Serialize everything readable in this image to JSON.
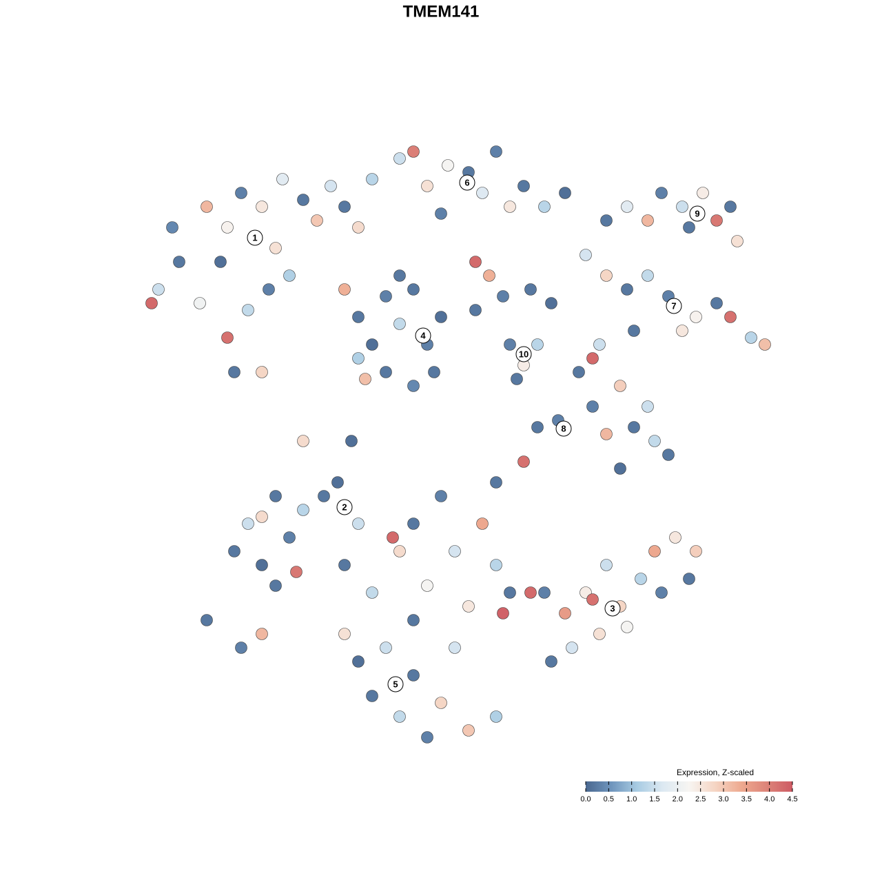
{
  "chart_data": {
    "type": "scatter",
    "title": "TMEM141",
    "xlim": [
      0,
      128
    ],
    "ylim": [
      0,
      128
    ],
    "colorbar_title": "Expression, Z-scaled",
    "colorlim": [
      0,
      4.5
    ],
    "colorscale": [
      "#4a6890",
      "#6f95bd",
      "#a9cce3",
      "#dde9f2",
      "#f7f5f2",
      "#f5d5c4",
      "#eeaa90",
      "#dd8479",
      "#cd5b64"
    ],
    "colorticks": [
      {
        "value": 0,
        "label": "0.0"
      },
      0.5,
      {
        "value": 1,
        "label": "1.0"
      },
      1.5,
      {
        "value": 2,
        "label": "2.0"
      },
      2.5,
      {
        "value": 3,
        "label": "3.0"
      },
      3.5,
      {
        "value": 4,
        "label": "4.0"
      },
      4.5
    ],
    "x": [
      23,
      26,
      30,
      33,
      35,
      38,
      41,
      44,
      46,
      40,
      32,
      29,
      33,
      36,
      39,
      34,
      38,
      42,
      48,
      50,
      52,
      54,
      25,
      22,
      58,
      60,
      62,
      65,
      68,
      70,
      72,
      74,
      76,
      79,
      82,
      64,
      69,
      71,
      52,
      54,
      56,
      58,
      60,
      62,
      64,
      56,
      60,
      52,
      58,
      63,
      53,
      50,
      69,
      73,
      77,
      80,
      74,
      76,
      78,
      75,
      88,
      91,
      94,
      96,
      99,
      102,
      104,
      106,
      107,
      100,
      85,
      88,
      91,
      94,
      97,
      101,
      104,
      106,
      109,
      111,
      99,
      92,
      87,
      86,
      84,
      86,
      90,
      88,
      92,
      95,
      97,
      90,
      94,
      78,
      81,
      44,
      51,
      34,
      38,
      36,
      40,
      42,
      44,
      47,
      49,
      40,
      43,
      38,
      30,
      35,
      38,
      52,
      50,
      54,
      58,
      60,
      64,
      62,
      66,
      70,
      72,
      76,
      68,
      72,
      74,
      50,
      52,
      56,
      60,
      64,
      58,
      62,
      68,
      72,
      54,
      66,
      60,
      57,
      73,
      79,
      82,
      85,
      88,
      90,
      93,
      95,
      98,
      101,
      96,
      87,
      83,
      80,
      91,
      100,
      86,
      77
    ],
    "y": [
      86,
      90,
      98,
      95,
      100,
      98,
      102,
      99,
      96,
      92,
      90,
      84,
      79,
      83,
      86,
      74,
      74,
      88,
      101,
      98,
      95,
      102,
      95,
      84,
      105,
      106,
      101,
      104,
      103,
      100,
      106,
      98,
      101,
      98,
      100,
      97,
      90,
      88,
      82,
      78,
      85,
      81,
      86,
      78,
      82,
      74,
      72,
      76,
      88,
      74,
      73,
      86,
      83,
      85,
      86,
      84,
      78,
      75,
      78,
      73,
      96,
      98,
      96,
      100,
      98,
      100,
      96,
      98,
      93,
      95,
      91,
      88,
      86,
      88,
      85,
      82,
      84,
      82,
      79,
      78,
      80,
      80,
      78,
      76,
      74,
      69,
      72,
      65,
      66,
      64,
      62,
      60,
      69,
      66,
      67,
      64,
      64,
      48,
      46,
      52,
      56,
      50,
      54,
      56,
      58,
      43,
      45,
      53,
      38,
      34,
      36,
      52,
      46,
      42,
      48,
      52,
      56,
      43,
      48,
      52,
      58,
      61,
      40,
      46,
      42,
      36,
      32,
      34,
      30,
      26,
      24,
      21,
      22,
      24,
      27,
      34,
      38,
      50,
      39,
      42,
      39,
      42,
      46,
      40,
      44,
      48,
      50,
      48,
      42,
      36,
      34,
      32,
      37,
      44,
      41,
      42
    ],
    "values": [
      1.5,
      0.2,
      3.2,
      2.3,
      0.3,
      2.5,
      1.8,
      0.2,
      3.0,
      2.6,
      0.1,
      2.1,
      4.2,
      1.4,
      0.3,
      0.2,
      2.8,
      1.2,
      1.6,
      0.2,
      2.7,
      1.3,
      0.4,
      4.3,
      1.5,
      4.0,
      2.6,
      2.2,
      0.2,
      1.7,
      0.3,
      2.5,
      0.2,
      1.3,
      0.1,
      0.3,
      4.3,
      3.3,
      0.2,
      0.1,
      0.3,
      1.4,
      0.2,
      0.3,
      0.1,
      0.2,
      0.4,
      1.2,
      0.2,
      0.2,
      3.1,
      3.3,
      0.2,
      0.3,
      0.2,
      0.1,
      0.3,
      2.4,
      1.3,
      0.2,
      0.2,
      1.8,
      3.2,
      0.3,
      1.5,
      2.4,
      4.1,
      0.2,
      2.6,
      0.2,
      1.6,
      2.8,
      0.2,
      1.4,
      0.3,
      2.3,
      0.2,
      4.2,
      1.3,
      3.1,
      2.5,
      0.2,
      1.5,
      4.3,
      0.2,
      0.3,
      2.9,
      3.2,
      0.2,
      1.4,
      0.2,
      0.1,
      1.5,
      0.2,
      0.3,
      2.7,
      0.1,
      0.2,
      0.1,
      1.5,
      0.2,
      0.3,
      1.3,
      0.2,
      0.1,
      0.2,
      4.1,
      2.7,
      0.2,
      0.3,
      3.2,
      1.5,
      0.2,
      1.4,
      2.7,
      0.2,
      0.3,
      2.2,
      1.6,
      3.4,
      0.2,
      4.2,
      2.5,
      1.3,
      0.2,
      2.6,
      0.1,
      1.5,
      0.2,
      2.8,
      1.4,
      0.3,
      3.0,
      1.2,
      0.2,
      1.6,
      0.2,
      4.3,
      4.4,
      0.3,
      3.6,
      2.4,
      1.5,
      2.8,
      1.3,
      3.4,
      2.5,
      2.9,
      0.3,
      2.6,
      1.6,
      0.2,
      2.2,
      0.2,
      4.2,
      4.3
    ],
    "cluster_labels": [
      {
        "label": "1",
        "x": 37,
        "y": 93.5
      },
      {
        "label": "6",
        "x": 67.8,
        "y": 101.5
      },
      {
        "label": "4",
        "x": 61.4,
        "y": 79.3
      },
      {
        "label": "10",
        "x": 76,
        "y": 76.6
      },
      {
        "label": "9",
        "x": 101.2,
        "y": 97
      },
      {
        "label": "7",
        "x": 97.8,
        "y": 83.6
      },
      {
        "label": "8",
        "x": 81.8,
        "y": 65.8
      },
      {
        "label": "2",
        "x": 50,
        "y": 54.4
      },
      {
        "label": "3",
        "x": 88.9,
        "y": 39.7
      },
      {
        "label": "5",
        "x": 57.4,
        "y": 28.7
      }
    ]
  }
}
